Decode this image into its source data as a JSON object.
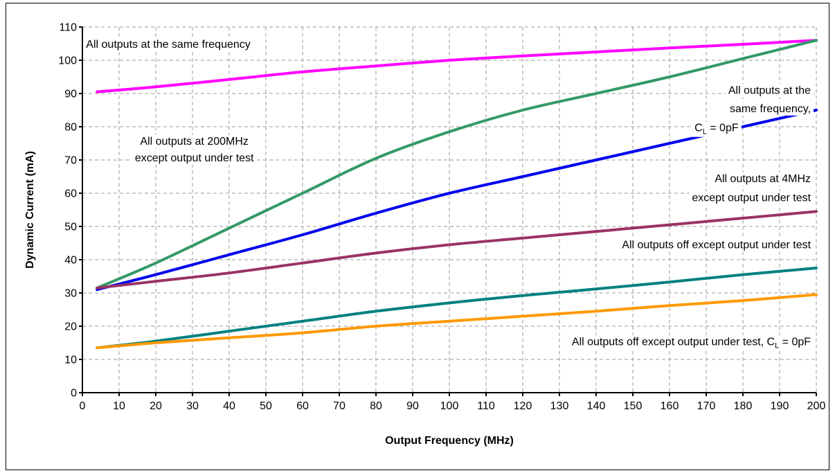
{
  "chart_data": {
    "type": "line",
    "title": "",
    "xlabel": "Output Frequency (MHz)",
    "ylabel": "Dynamic Current (mA)",
    "xlim": [
      0,
      200
    ],
    "ylim": [
      0,
      110
    ],
    "x_ticks": [
      0,
      10,
      20,
      30,
      40,
      50,
      60,
      70,
      80,
      90,
      100,
      110,
      120,
      130,
      140,
      150,
      160,
      170,
      180,
      190,
      200
    ],
    "y_ticks": [
      0,
      10,
      20,
      30,
      40,
      50,
      60,
      70,
      80,
      90,
      100,
      110
    ],
    "grid": true,
    "legend": "none",
    "series": [
      {
        "color": "#ff00ff",
        "x": [
          4,
          20,
          40,
          60,
          80,
          100,
          120,
          140,
          160,
          180,
          200
        ],
        "y": [
          90.5,
          92,
          94.2,
          96.5,
          98.3,
          100,
          101.3,
          102.5,
          103.7,
          104.8,
          106
        ]
      },
      {
        "color": "#339966",
        "x": [
          4,
          20,
          40,
          60,
          80,
          100,
          120,
          140,
          160,
          180,
          200
        ],
        "y": [
          31.5,
          39,
          49.5,
          60,
          70.5,
          78.5,
          85,
          90,
          95,
          100.5,
          106
        ]
      },
      {
        "color": "#0000ee",
        "x": [
          4,
          20,
          40,
          60,
          80,
          100,
          120,
          140,
          160,
          180,
          200
        ],
        "y": [
          31,
          35.5,
          41.5,
          47.5,
          54,
          60,
          65,
          70,
          75,
          80,
          85
        ]
      },
      {
        "color": "#993366",
        "x": [
          4,
          20,
          40,
          60,
          80,
          100,
          120,
          140,
          160,
          180,
          200
        ],
        "y": [
          31.5,
          33.5,
          36,
          39,
          42,
          44.5,
          46.5,
          48.5,
          50.5,
          52.5,
          54.5
        ]
      },
      {
        "color": "#008080",
        "x": [
          4,
          20,
          40,
          60,
          80,
          100,
          120,
          140,
          160,
          180,
          200
        ],
        "y": [
          13.5,
          15.5,
          18.5,
          21.5,
          24.5,
          27,
          29.2,
          31.2,
          33.3,
          35.5,
          37.5
        ]
      },
      {
        "color": "#ff9900",
        "x": [
          4,
          20,
          40,
          60,
          80,
          100,
          120,
          140,
          160,
          180,
          200
        ],
        "y": [
          13.5,
          15,
          16.5,
          18,
          20,
          21.5,
          23,
          24.5,
          26.2,
          27.7,
          29.5
        ]
      }
    ],
    "annotations": [
      {
        "text": "All outputs at the same frequency",
        "x": 1,
        "y": 103.8,
        "anchor": "start"
      },
      {
        "text": "All outputs at 200MHz",
        "x": 30.5,
        "y": 74.6,
        "anchor": "middle"
      },
      {
        "text": "except output under test",
        "x": 30.5,
        "y": 69.6,
        "anchor": "middle"
      },
      {
        "text": "All outputs at the",
        "x": 198.5,
        "y": 89.9,
        "anchor": "end"
      },
      {
        "text": "same frequency,",
        "x": 198.5,
        "y": 84.4,
        "anchor": "end"
      },
      {
        "text": "C",
        "sub": "L",
        "suffix": " = 0pF",
        "x": 178.8,
        "y": 78.6,
        "anchor": "end"
      },
      {
        "text": "All outputs at 4MHz",
        "x": 198.5,
        "y": 63.3,
        "anchor": "end"
      },
      {
        "text": "except output under test",
        "x": 198.5,
        "y": 57.6,
        "anchor": "end"
      },
      {
        "text": "All outputs off except output under test",
        "x": 198.5,
        "y": 43.4,
        "anchor": "end"
      },
      {
        "text": "All outputs off except output under test, C",
        "sub": "L",
        "suffix": " = 0pF",
        "x": 198.5,
        "y": 14.3,
        "anchor": "end"
      }
    ]
  }
}
